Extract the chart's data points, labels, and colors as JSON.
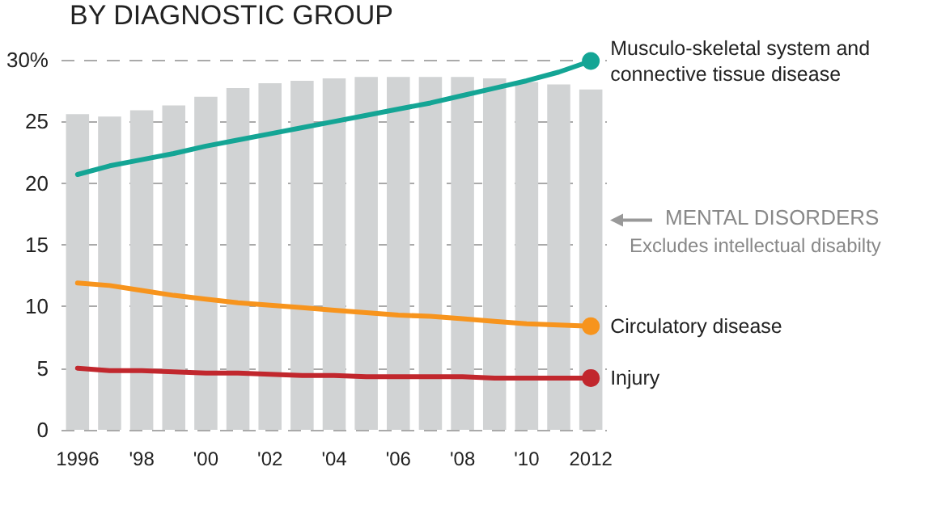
{
  "chart_data": {
    "type": "bar",
    "title": "BY DIAGNOSTIC GROUP",
    "categories": [
      "1996",
      null,
      "'98",
      null,
      "'00",
      null,
      "'02",
      null,
      "'04",
      null,
      "'06",
      null,
      "'08",
      null,
      "'10",
      null,
      "2012"
    ],
    "series": [
      {
        "name": "MENTAL DISORDERS",
        "color": "#d1d3d4",
        "values": [
          25.6,
          25.4,
          25.9,
          26.3,
          27.0,
          27.7,
          28.1,
          28.3,
          28.5,
          28.6,
          28.6,
          28.6,
          28.6,
          28.5,
          28.2,
          28.0,
          27.6
        ]
      },
      {
        "name": "Musculo-skeletal system and connective tissue disease",
        "type": "line",
        "color": "#14a595",
        "values": [
          20.7,
          21.4,
          21.9,
          22.4,
          23.0,
          23.5,
          24.0,
          24.5,
          25.0,
          25.5,
          26.0,
          26.5,
          27.1,
          27.7,
          28.3,
          29.0,
          29.9
        ]
      },
      {
        "name": "Circulatory disease",
        "type": "line",
        "color": "#f7941d",
        "values": [
          11.9,
          11.7,
          11.3,
          10.9,
          10.6,
          10.3,
          10.1,
          9.9,
          9.7,
          9.5,
          9.3,
          9.2,
          9.0,
          8.8,
          8.6,
          8.5,
          8.4
        ]
      },
      {
        "name": "Injury",
        "type": "line",
        "color": "#c1272d",
        "values": [
          5.0,
          4.8,
          4.8,
          4.7,
          4.6,
          4.6,
          4.5,
          4.4,
          4.4,
          4.3,
          4.3,
          4.3,
          4.3,
          4.2,
          4.2,
          4.2,
          4.2
        ]
      }
    ],
    "annotations": [
      "Excludes intellectual disabilty"
    ],
    "ylim": [
      0,
      30
    ],
    "yticks": [
      0,
      5,
      10,
      15,
      20,
      25,
      {
        "value": 30,
        "label": "30%"
      }
    ],
    "grid": "y",
    "legend": false,
    "line_style": "solid"
  }
}
